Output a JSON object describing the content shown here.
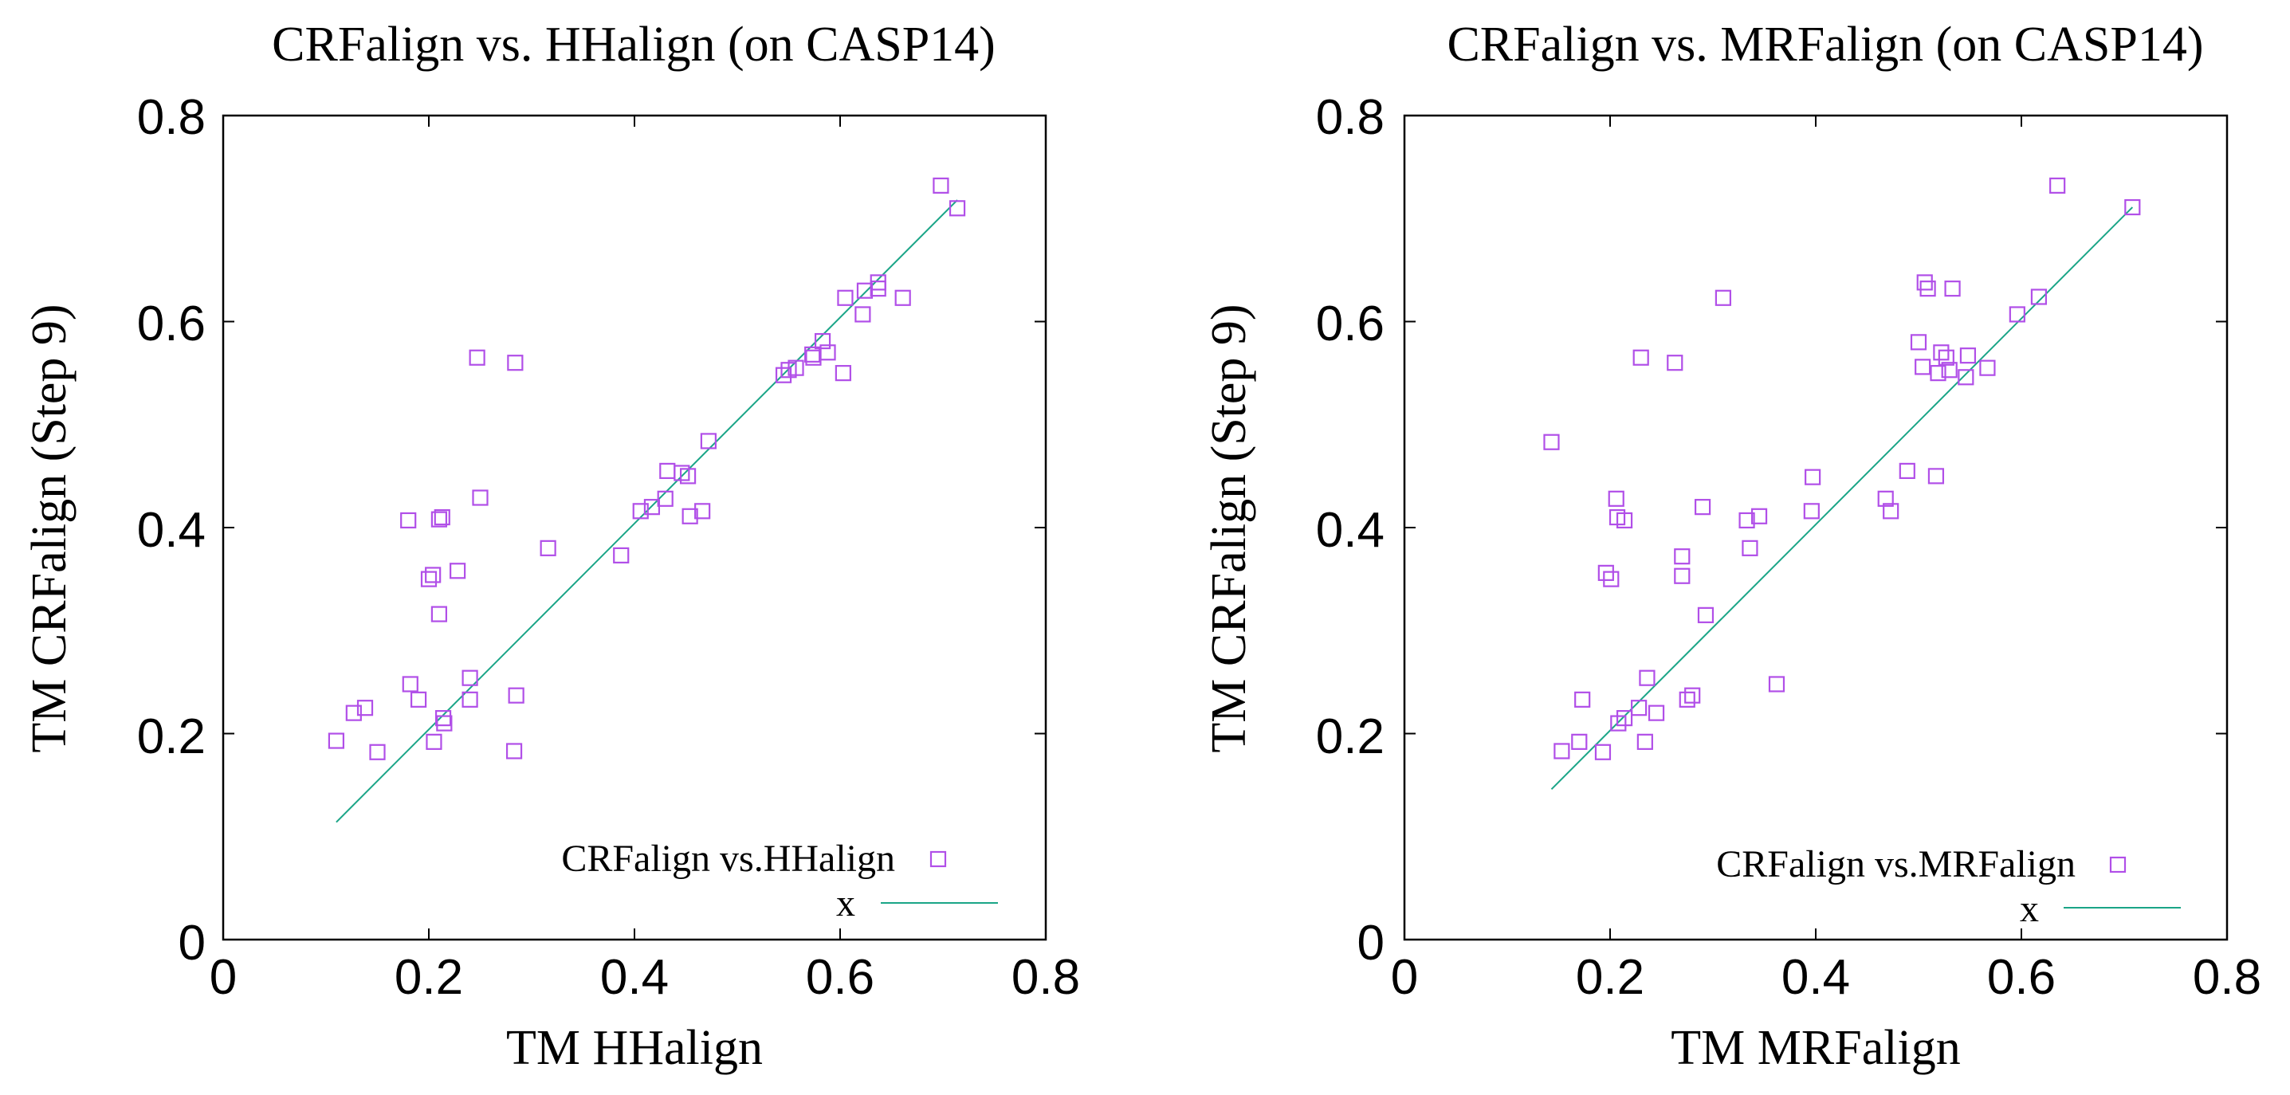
{
  "colors": {
    "points": "#b14fe8",
    "fit_line": "#1aa587",
    "axes": "#000000",
    "background": "#ffffff"
  },
  "chart_data": [
    {
      "type": "scatter",
      "title": "CRFalign vs. HHalign (on CASP14)",
      "xlabel": "TM HHalign",
      "ylabel": "TM CRFalign (Step 9)",
      "xlim": [
        0,
        0.8
      ],
      "ylim": [
        0,
        0.8
      ],
      "xticks": [
        "0",
        "0.2",
        "0.4",
        "0.6",
        "0.8"
      ],
      "yticks": [
        "0",
        "0.2",
        "0.4",
        "0.6",
        "0.8"
      ],
      "legend": [
        "CRFalign vs.HHalign",
        "x"
      ],
      "legend_position": "bottom-right",
      "series": [
        {
          "name": "CRFalign vs.HHalign",
          "marker": "open-square",
          "points": [
            [
              0.11,
              0.193
            ],
            [
              0.127,
              0.22
            ],
            [
              0.138,
              0.225
            ],
            [
              0.15,
              0.182
            ],
            [
              0.182,
              0.248
            ],
            [
              0.18,
              0.407
            ],
            [
              0.19,
              0.233
            ],
            [
              0.2,
              0.35
            ],
            [
              0.204,
              0.354
            ],
            [
              0.205,
              0.192
            ],
            [
              0.21,
              0.316
            ],
            [
              0.21,
              0.408
            ],
            [
              0.213,
              0.41
            ],
            [
              0.214,
              0.215
            ],
            [
              0.215,
              0.21
            ],
            [
              0.228,
              0.358
            ],
            [
              0.24,
              0.254
            ],
            [
              0.24,
              0.233
            ],
            [
              0.247,
              0.565
            ],
            [
              0.25,
              0.429
            ],
            [
              0.283,
              0.183
            ],
            [
              0.284,
              0.56
            ],
            [
              0.285,
              0.237
            ],
            [
              0.316,
              0.38
            ],
            [
              0.387,
              0.373
            ],
            [
              0.406,
              0.416
            ],
            [
              0.417,
              0.42
            ],
            [
              0.43,
              0.428
            ],
            [
              0.432,
              0.455
            ],
            [
              0.446,
              0.453
            ],
            [
              0.452,
              0.45
            ],
            [
              0.454,
              0.411
            ],
            [
              0.466,
              0.416
            ],
            [
              0.472,
              0.484
            ],
            [
              0.545,
              0.548
            ],
            [
              0.55,
              0.553
            ],
            [
              0.557,
              0.555
            ],
            [
              0.573,
              0.568
            ],
            [
              0.574,
              0.565
            ],
            [
              0.583,
              0.581
            ],
            [
              0.588,
              0.57
            ],
            [
              0.603,
              0.55
            ],
            [
              0.605,
              0.623
            ],
            [
              0.622,
              0.607
            ],
            [
              0.624,
              0.63
            ],
            [
              0.637,
              0.632
            ],
            [
              0.637,
              0.638
            ],
            [
              0.661,
              0.623
            ],
            [
              0.698,
              0.732
            ],
            [
              0.714,
              0.71
            ]
          ]
        },
        {
          "name": "x",
          "type": "line",
          "x": [
            0.11,
            0.714
          ],
          "y": [
            0.114,
            0.718
          ]
        }
      ]
    },
    {
      "type": "scatter",
      "title": "CRFalign vs. MRFalign (on CASP14)",
      "xlabel": "TM MRFalign",
      "ylabel": "TM CRFalign (Step 9)",
      "xlim": [
        0,
        0.8
      ],
      "ylim": [
        0,
        0.8
      ],
      "xticks": [
        "0",
        "0.2",
        "0.4",
        "0.6",
        "0.8"
      ],
      "yticks": [
        "0",
        "0.2",
        "0.4",
        "0.6",
        "0.8"
      ],
      "legend": [
        "CRFalign vs.MRFalign",
        "x"
      ],
      "legend_position": "bottom-right",
      "series": [
        {
          "name": "CRFalign vs.MRFalign",
          "marker": "open-square",
          "points": [
            [
              0.143,
              0.483
            ],
            [
              0.153,
              0.183
            ],
            [
              0.17,
              0.192
            ],
            [
              0.173,
              0.233
            ],
            [
              0.193,
              0.182
            ],
            [
              0.196,
              0.356
            ],
            [
              0.201,
              0.35
            ],
            [
              0.206,
              0.428
            ],
            [
              0.207,
              0.41
            ],
            [
              0.208,
              0.21
            ],
            [
              0.214,
              0.407
            ],
            [
              0.214,
              0.215
            ],
            [
              0.228,
              0.225
            ],
            [
              0.23,
              0.565
            ],
            [
              0.234,
              0.192
            ],
            [
              0.236,
              0.254
            ],
            [
              0.245,
              0.22
            ],
            [
              0.263,
              0.56
            ],
            [
              0.27,
              0.372
            ],
            [
              0.27,
              0.353
            ],
            [
              0.275,
              0.233
            ],
            [
              0.28,
              0.237
            ],
            [
              0.29,
              0.42
            ],
            [
              0.293,
              0.315
            ],
            [
              0.31,
              0.623
            ],
            [
              0.333,
              0.407
            ],
            [
              0.336,
              0.38
            ],
            [
              0.345,
              0.411
            ],
            [
              0.362,
              0.248
            ],
            [
              0.396,
              0.416
            ],
            [
              0.397,
              0.449
            ],
            [
              0.468,
              0.428
            ],
            [
              0.473,
              0.416
            ],
            [
              0.489,
              0.455
            ],
            [
              0.5,
              0.58
            ],
            [
              0.504,
              0.556
            ],
            [
              0.506,
              0.638
            ],
            [
              0.509,
              0.632
            ],
            [
              0.517,
              0.45
            ],
            [
              0.519,
              0.55
            ],
            [
              0.522,
              0.57
            ],
            [
              0.527,
              0.565
            ],
            [
              0.53,
              0.553
            ],
            [
              0.533,
              0.632
            ],
            [
              0.546,
              0.546
            ],
            [
              0.548,
              0.567
            ],
            [
              0.567,
              0.555
            ],
            [
              0.596,
              0.607
            ],
            [
              0.617,
              0.624
            ],
            [
              0.635,
              0.732
            ],
            [
              0.708,
              0.711
            ]
          ]
        },
        {
          "name": "x",
          "type": "line",
          "x": [
            0.143,
            0.708
          ],
          "y": [
            0.146,
            0.711
          ]
        }
      ]
    }
  ]
}
